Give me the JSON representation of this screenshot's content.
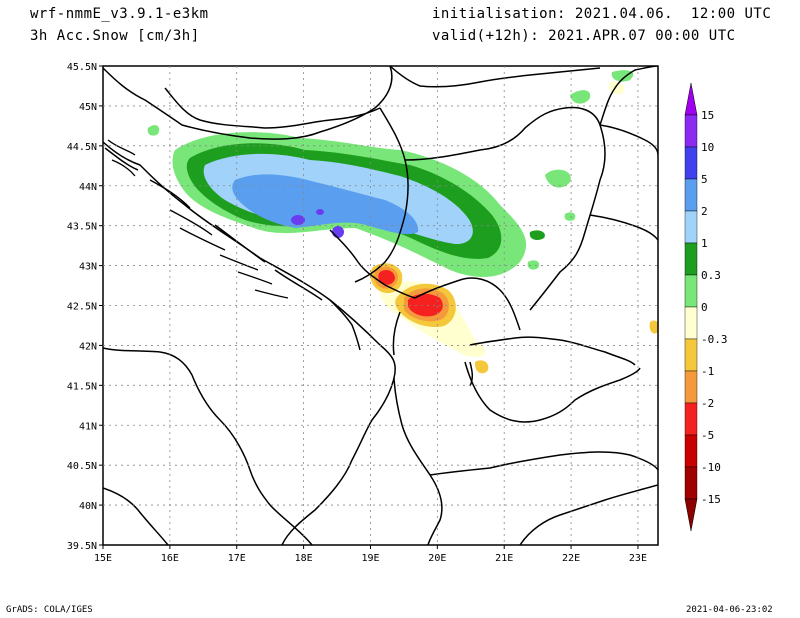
{
  "header": {
    "model": "wrf-nmmE_v3.9.1-e3km",
    "field": "3h Acc.Snow [cm/3h]",
    "init": "initialisation: 2021.04.06.  12:00 UTC",
    "valid": "valid(+12h): 2021.APR.07 00:00 UTC"
  },
  "footer": {
    "left": "GrADS: COLA/IGES",
    "right": "2021-04-06-23:02"
  },
  "map": {
    "lat_labels": [
      "45.5N",
      "45N",
      "44.5N",
      "44N",
      "43.5N",
      "43N",
      "42.5N",
      "42N",
      "41.5N",
      "41N",
      "40.5N",
      "40N",
      "39.5N"
    ],
    "lon_labels": [
      "15E",
      "16E",
      "17E",
      "18E",
      "19E",
      "20E",
      "21E",
      "22E",
      "23E"
    ],
    "lat_range": [
      39.5,
      45.5
    ],
    "lon_range": [
      15,
      23.3
    ]
  },
  "colorbar": {
    "labels": [
      "15",
      "10",
      "5",
      "2",
      "1",
      "0.3",
      "0",
      "-0.3",
      "-1",
      "-2",
      "-5",
      "-10",
      "-15"
    ],
    "colors": [
      "#8b2af0",
      "#4040ee",
      "#5a9ef0",
      "#a0d2fa",
      "#1e9e1e",
      "#78e678",
      "#ffffff",
      "#ffffd0",
      "#f5c83c",
      "#f59a3c",
      "#f52020",
      "#c80000",
      "#a00000"
    ],
    "cap_top_color": "#a000f0",
    "cap_bottom_color": "#8c0000"
  }
}
